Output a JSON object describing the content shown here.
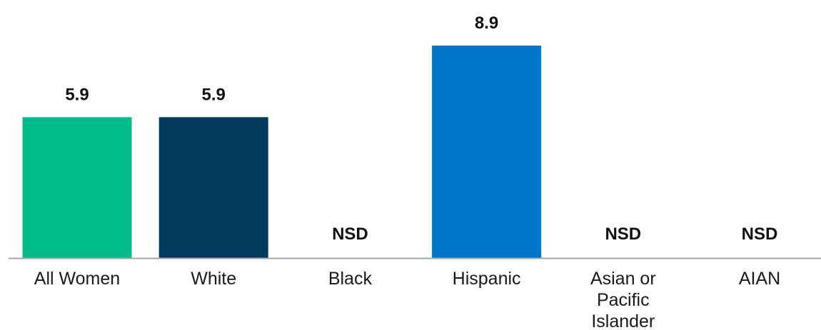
{
  "chart_data": {
    "type": "bar",
    "title": "",
    "xlabel": "",
    "ylabel": "",
    "ylim": [
      0,
      8.9
    ],
    "grid": false,
    "legend": "none",
    "categories": [
      "All Women",
      "White",
      "Black",
      "Hispanic",
      "Asian or Pacific Islander",
      "AIAN"
    ],
    "category_lines": [
      [
        "All Women"
      ],
      [
        "White"
      ],
      [
        "Black"
      ],
      [
        "Hispanic"
      ],
      [
        "Asian or",
        "Pacific",
        "Islander"
      ],
      [
        "AIAN"
      ]
    ],
    "values": [
      5.9,
      5.9,
      null,
      8.9,
      null,
      null
    ],
    "data_labels": [
      "5.9",
      "5.9",
      "NSD",
      "8.9",
      "NSD",
      "NSD"
    ],
    "colors": [
      "#00be8c",
      "#003a5d",
      "#003a5d",
      "#0075c9",
      "#0075c9",
      "#0075c9"
    ],
    "axis_color": "#a6a6a6"
  }
}
